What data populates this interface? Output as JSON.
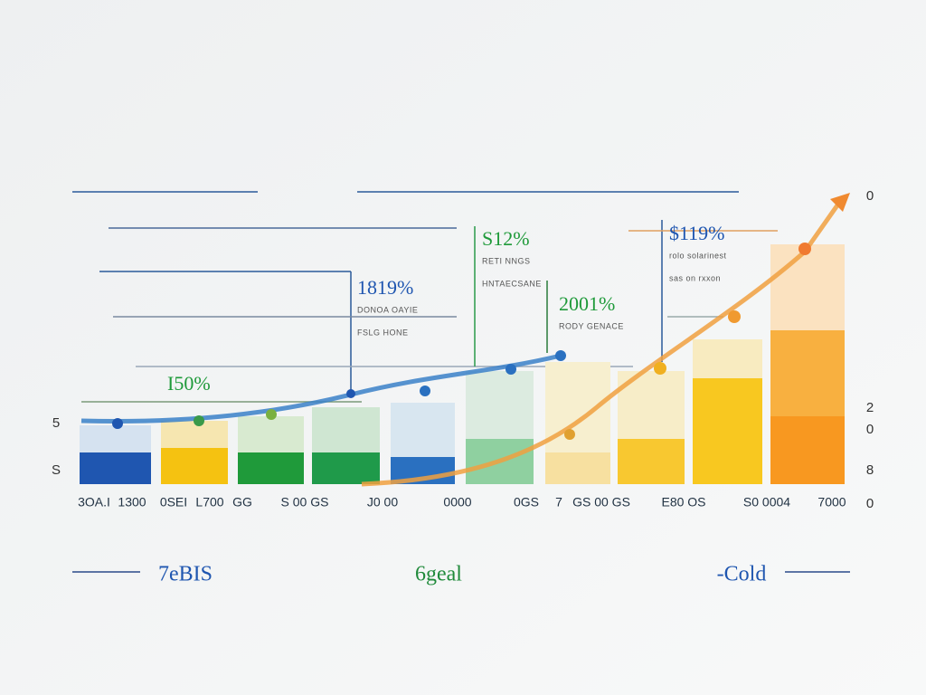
{
  "callouts": [
    {
      "value": "I50%"
    },
    {
      "value": "1819%",
      "lines": [
        "DONOA OAYIE",
        "FSLG HONE"
      ]
    },
    {
      "value": "S12%",
      "lines": [
        "RETI NNGS",
        "HNTAECSANE"
      ]
    },
    {
      "value": "2001%",
      "lines": [
        "RODY GENACE"
      ]
    },
    {
      "value": "$119%",
      "lines": [
        "rolo solarinest",
        "sas on rxxon"
      ]
    }
  ],
  "left_axis": [
    "5",
    "S"
  ],
  "right_axis": [
    "0",
    "2",
    "0",
    "8",
    "0"
  ],
  "x_labels": [
    "3OA.I",
    "1300",
    "0SEI",
    "L700",
    "GG",
    "S 00 GS",
    "J0 00",
    "0000",
    "0GS",
    "7",
    "GS 00 GS",
    "E80 OS",
    "S0 0004",
    "7000"
  ],
  "legend": [
    "7eBIS",
    "6geal",
    "-Cold"
  ]
}
